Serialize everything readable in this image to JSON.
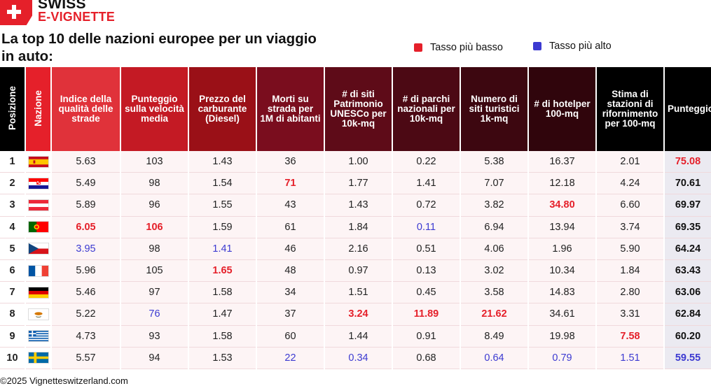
{
  "brand": {
    "line1": "SWISS",
    "line2": "E-VIGNETTE"
  },
  "title": "La top 10 delle nazioni europee per un viaggio in auto:",
  "legend": {
    "low": "Tasso più basso",
    "high": "Tasso più alto",
    "low_color": "#e5202a",
    "high_color": "#3c3ad1"
  },
  "headers": [
    {
      "text": "Posizione",
      "bg": "#000000",
      "vertical": true
    },
    {
      "text": "Nazione",
      "bg": "#e5202a",
      "vertical": true
    },
    {
      "text": "Indice della qualità delle strade",
      "bg": "#e0323a"
    },
    {
      "text": "Punteggio sulla velocità media",
      "bg": "#c41a24"
    },
    {
      "text": "Prezzo del carburante (Diesel)",
      "bg": "#9a1017"
    },
    {
      "text": "Morti su strada per 1M di abitanti",
      "bg": "#7a0d1e"
    },
    {
      "text": "# di siti Patrimonio UNESCo per 10k-mq",
      "bg": "#5e0b18"
    },
    {
      "text": "# di parchi nazionali per 10k-mq",
      "bg": "#4c0914"
    },
    {
      "text": "Numero di siti turistici 1k-mq",
      "bg": "#3d0710"
    },
    {
      "text": "# di hotelper 100-mq",
      "bg": "#30050c"
    },
    {
      "text": "Stima di stazioni di rifornimento per 100-mq",
      "bg": "#000000"
    },
    {
      "text": "Punteggio",
      "bg": "#000000"
    }
  ],
  "rows": [
    {
      "pos": "1",
      "flag": "spain",
      "cells": [
        "5.63",
        "103",
        "1.43",
        "36",
        "1.00",
        "0.22",
        "5.38",
        "16.37",
        "2.01",
        "75.08"
      ],
      "flag_low": [
        9
      ],
      "flag_high": []
    },
    {
      "pos": "2",
      "flag": "croatia",
      "cells": [
        "5.49",
        "98",
        "1.54",
        "71",
        "1.77",
        "1.41",
        "7.07",
        "12.18",
        "4.24",
        "70.61"
      ],
      "flag_low": [
        3
      ],
      "flag_high": []
    },
    {
      "pos": "3",
      "flag": "austria",
      "cells": [
        "5.89",
        "96",
        "1.55",
        "43",
        "1.43",
        "0.72",
        "3.82",
        "34.80",
        "6.60",
        "69.97"
      ],
      "flag_low": [
        7
      ],
      "flag_high": []
    },
    {
      "pos": "4",
      "flag": "portugal",
      "cells": [
        "6.05",
        "106",
        "1.59",
        "61",
        "1.84",
        "0.11",
        "6.94",
        "13.94",
        "3.74",
        "69.35"
      ],
      "flag_low": [
        0,
        1
      ],
      "flag_high": [
        5
      ]
    },
    {
      "pos": "5",
      "flag": "czechia",
      "cells": [
        "3.95",
        "98",
        "1.41",
        "46",
        "2.16",
        "0.51",
        "4.06",
        "1.96",
        "5.90",
        "64.24"
      ],
      "flag_low": [],
      "flag_high": [
        0,
        2
      ]
    },
    {
      "pos": "6",
      "flag": "france",
      "cells": [
        "5.96",
        "105",
        "1.65",
        "48",
        "0.97",
        "0.13",
        "3.02",
        "10.34",
        "1.84",
        "63.43"
      ],
      "flag_low": [
        2
      ],
      "flag_high": []
    },
    {
      "pos": "7",
      "flag": "germany",
      "cells": [
        "5.46",
        "97",
        "1.58",
        "34",
        "1.51",
        "0.45",
        "3.58",
        "14.83",
        "2.80",
        "63.06"
      ],
      "flag_low": [],
      "flag_high": []
    },
    {
      "pos": "8",
      "flag": "cyprus",
      "cells": [
        "5.22",
        "76",
        "1.47",
        "37",
        "3.24",
        "11.89",
        "21.62",
        "34.61",
        "3.31",
        "62.84"
      ],
      "flag_low": [
        4,
        5,
        6
      ],
      "flag_high": [
        1
      ]
    },
    {
      "pos": "9",
      "flag": "greece",
      "cells": [
        "4.73",
        "93",
        "1.58",
        "60",
        "1.44",
        "0.91",
        "8.49",
        "19.98",
        "7.58",
        "60.20"
      ],
      "flag_low": [
        8
      ],
      "flag_high": []
    },
    {
      "pos": "10",
      "flag": "sweden",
      "cells": [
        "5.57",
        "94",
        "1.53",
        "22",
        "0.34",
        "0.68",
        "0.64",
        "0.79",
        "1.51",
        "59.55"
      ],
      "flag_low": [],
      "flag_high": [
        3,
        4,
        6,
        7,
        8,
        9
      ]
    }
  ],
  "footer": "©2025 Vignetteswitzerland.com"
}
